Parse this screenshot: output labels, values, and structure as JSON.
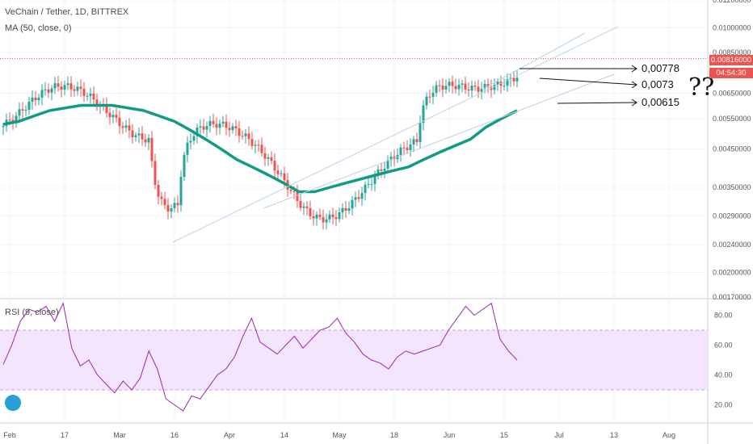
{
  "legend": {
    "symbol": "VeChain / Tether, 1D, BITTREX",
    "ma": "MA (50, close, 0)",
    "rsi": "RSI (9, close)"
  },
  "price_tags": {
    "last": "0.00816000",
    "countdown": "04:54:30"
  },
  "colors": {
    "up": "#26a69a",
    "down": "#ef5350",
    "ma": "#119b84",
    "rsi": "#9c27b0",
    "rsi_band": "#f3e5fd",
    "trend": "#b9d3e6"
  },
  "chart_data": [
    {
      "type": "candlestick",
      "title": "VeChain / Tether, 1D, BITTREX",
      "y_scale": "log",
      "ylim": [
        0.0017,
        0.012
      ],
      "y_ticks": [
        "0.01200000",
        "0.01000000",
        "0.00850000",
        "0.00650000",
        "0.00550000",
        "0.00450000",
        "0.00350000",
        "0.00290000",
        "0.00240000",
        "0.00200000",
        "0.00170000"
      ],
      "x_ticks": [
        "Feb",
        "17",
        "Mar",
        "16",
        "Apr",
        "14",
        "May",
        "18",
        "Jun",
        "15",
        "Jul",
        "13",
        "Aug"
      ],
      "ma_series_name": "MA (50, close, 0)",
      "ma_values": [
        0.0053,
        0.0054,
        0.0056,
        0.0058,
        0.0059,
        0.006,
        0.006,
        0.006,
        0.0059,
        0.0058,
        0.0056,
        0.0054,
        0.0051,
        0.0048,
        0.0045,
        0.0042,
        0.004,
        0.0038,
        0.0036,
        0.0034,
        0.0034,
        0.0035,
        0.0036,
        0.0037,
        0.0038,
        0.0039,
        0.004,
        0.0042,
        0.0044,
        0.0046,
        0.0048,
        0.0052,
        0.0055,
        0.0058
      ],
      "annotations": [
        "0,00778",
        "0,0073",
        "0,00615",
        "??"
      ]
    },
    {
      "type": "line",
      "title": "RSI (9, close)",
      "ylim": [
        10,
        90
      ],
      "y_ticks": [
        "80.00",
        "60.00",
        "40.00",
        "20.00"
      ],
      "band": [
        30,
        70
      ],
      "values": [
        47,
        60,
        76,
        84,
        82,
        86,
        76,
        88,
        58,
        46,
        50,
        40,
        34,
        28,
        36,
        30,
        38,
        56,
        44,
        24,
        20,
        16,
        26,
        24,
        32,
        40,
        44,
        52,
        66,
        78,
        62,
        58,
        54,
        60,
        66,
        58,
        64,
        70,
        72,
        78,
        68,
        62,
        54,
        50,
        48,
        44,
        52,
        56,
        54,
        56,
        58,
        60,
        70,
        78,
        86,
        80,
        84,
        88,
        64,
        56,
        50
      ]
    }
  ]
}
